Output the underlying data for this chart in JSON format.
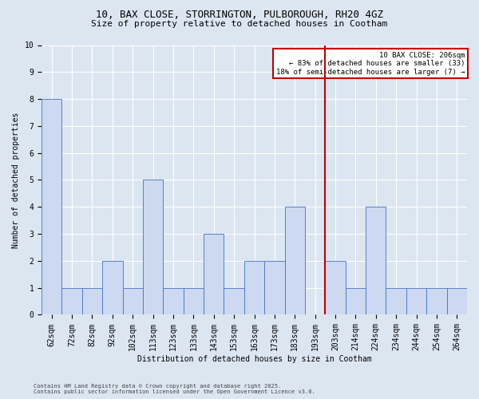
{
  "title": "10, BAX CLOSE, STORRINGTON, PULBOROUGH, RH20 4GZ",
  "subtitle": "Size of property relative to detached houses in Cootham",
  "xlabel": "Distribution of detached houses by size in Cootham",
  "ylabel": "Number of detached properties",
  "footer": "Contains HM Land Registry data © Crown copyright and database right 2025.\nContains public sector information licensed under the Open Government Licence v3.0.",
  "categories": [
    "62sqm",
    "72sqm",
    "82sqm",
    "92sqm",
    "102sqm",
    "113sqm",
    "123sqm",
    "133sqm",
    "143sqm",
    "153sqm",
    "163sqm",
    "173sqm",
    "183sqm",
    "193sqm",
    "203sqm",
    "214sqm",
    "224sqm",
    "234sqm",
    "244sqm",
    "254sqm",
    "264sqm"
  ],
  "values": [
    8,
    1,
    1,
    2,
    1,
    5,
    1,
    1,
    3,
    1,
    2,
    2,
    4,
    0,
    2,
    1,
    4,
    1,
    1,
    1,
    1
  ],
  "bar_color": "#ccd9f0",
  "bar_edge_color": "#4472c4",
  "background_color": "#dce6f1",
  "gridcolor": "#ffffff",
  "vline_x": 13.5,
  "vline_color": "#c00000",
  "annotation_text": "10 BAX CLOSE: 206sqm\n← 83% of detached houses are smaller (33)\n18% of semi-detached houses are larger (7) →",
  "annotation_box_color": "#c00000",
  "ylim": [
    0,
    10
  ],
  "yticks": [
    0,
    1,
    2,
    3,
    4,
    5,
    6,
    7,
    8,
    9,
    10
  ],
  "title_fontsize": 9,
  "subtitle_fontsize": 8,
  "axis_fontsize": 7,
  "ylabel_fontsize": 7,
  "xlabel_fontsize": 7,
  "footer_fontsize": 5,
  "annot_fontsize": 6.5
}
